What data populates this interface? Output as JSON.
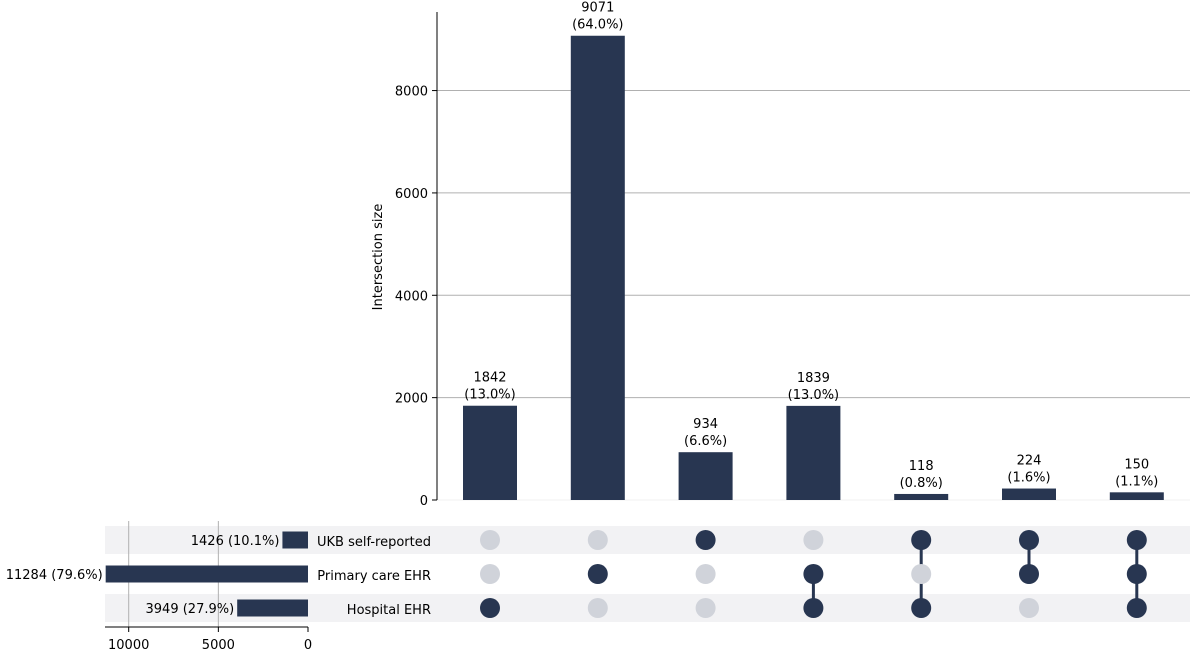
{
  "chart_data": {
    "type": "upset",
    "ylabel": "Intersection size",
    "ylim": [
      0,
      9500
    ],
    "yticks": [
      "0",
      "2000",
      "4000",
      "6000",
      "8000"
    ],
    "set_size_ticks": [
      "10000",
      "5000",
      "0"
    ],
    "sets": [
      {
        "name": "UKB self-reported",
        "size": 1426,
        "label": "1426 (10.1%)"
      },
      {
        "name": "Primary care EHR",
        "size": 11284,
        "label": "11284 (79.6%)"
      },
      {
        "name": "Hospital EHR",
        "size": 3949,
        "label": "3949 (27.9%)"
      }
    ],
    "intersections": [
      {
        "value": 1842,
        "count_label": "1842",
        "pct_label": "(13.0%)",
        "members": [
          false,
          false,
          true
        ]
      },
      {
        "value": 9071,
        "count_label": "9071",
        "pct_label": "(64.0%)",
        "members": [
          false,
          true,
          false
        ]
      },
      {
        "value": 934,
        "count_label": "934",
        "pct_label": "(6.6%)",
        "members": [
          true,
          false,
          false
        ]
      },
      {
        "value": 1839,
        "count_label": "1839",
        "pct_label": "(13.0%)",
        "members": [
          false,
          true,
          true
        ]
      },
      {
        "value": 118,
        "count_label": "118",
        "pct_label": "(0.8%)",
        "members": [
          true,
          false,
          true
        ]
      },
      {
        "value": 224,
        "count_label": "224",
        "pct_label": "(1.6%)",
        "members": [
          true,
          true,
          false
        ]
      },
      {
        "value": 150,
        "count_label": "150",
        "pct_label": "(1.1%)",
        "members": [
          true,
          true,
          true
        ]
      }
    ],
    "grid": true,
    "colors": {
      "bar": "#283651",
      "inactive_dot": "#d0d3da",
      "row_shade": "#f2f2f4",
      "grid": "#b0b0b0"
    }
  }
}
